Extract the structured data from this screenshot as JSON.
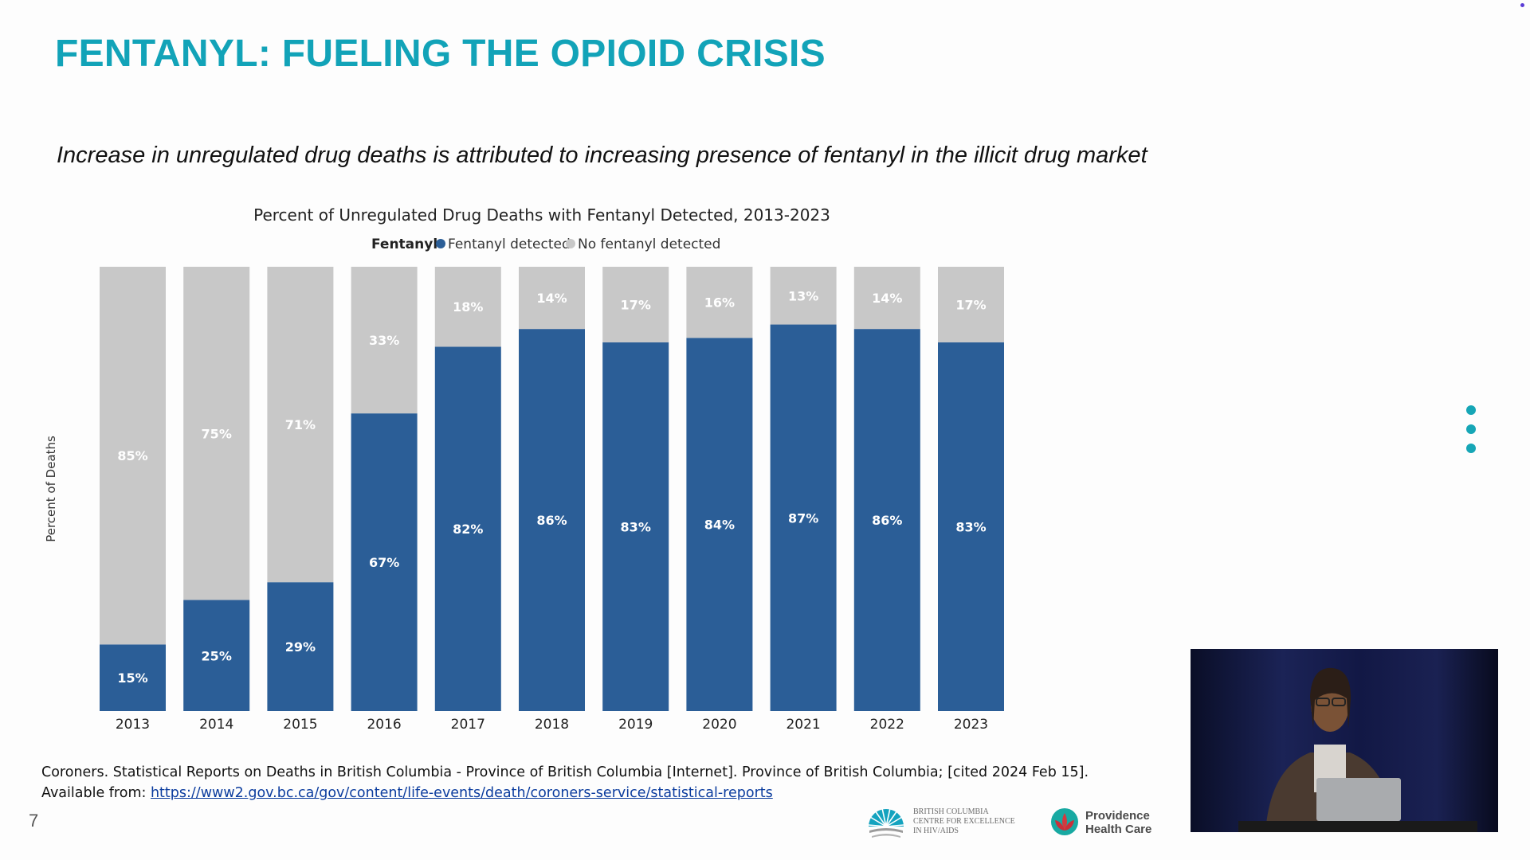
{
  "slide": {
    "title": "FENTANYL: FUELING THE OPIOID CRISIS",
    "subtitle": "Increase in unregulated drug deaths is attributed to increasing presence of fentanyl in the illicit drug market",
    "page_number": "7",
    "citation": {
      "text": "Coroners. Statistical Reports on Deaths in British Columbia - Province of British Columbia [Internet]. Province of British Columbia; [cited 2024 Feb 15].",
      "available_prefix": "Available from: ",
      "link": "https://www2.gov.bc.ca/gov/content/life-events/death/coroners-service/statistical-reports"
    },
    "logos": {
      "bccfe_lines": [
        "British Columbia",
        "Centre for Excellence",
        "in HIV/AIDS"
      ],
      "phc_lines": [
        "Providence",
        "Health Care"
      ]
    },
    "accent_color": "#12a3b8"
  },
  "chart_data": {
    "type": "bar",
    "stacked": true,
    "title": "Percent of Unregulated Drug Deaths with Fentanyl Detected, 2013-2023",
    "legend_title": "Fentanyl",
    "legend_position": "top",
    "ylabel": "Percent of Deaths",
    "xlabel": "",
    "ylim": [
      0,
      100
    ],
    "categories": [
      "2013",
      "2014",
      "2015",
      "2016",
      "2017",
      "2018",
      "2019",
      "2020",
      "2021",
      "2022",
      "2023"
    ],
    "series": [
      {
        "name": "Fentanyl detected",
        "color": "#2b5e97",
        "values": [
          15,
          25,
          29,
          67,
          82,
          86,
          83,
          84,
          87,
          86,
          83
        ]
      },
      {
        "name": "No fentanyl detected",
        "color": "#c8c8c8",
        "values": [
          85,
          75,
          71,
          33,
          18,
          14,
          17,
          16,
          13,
          14,
          17
        ]
      }
    ],
    "value_label_suffix": "%"
  }
}
